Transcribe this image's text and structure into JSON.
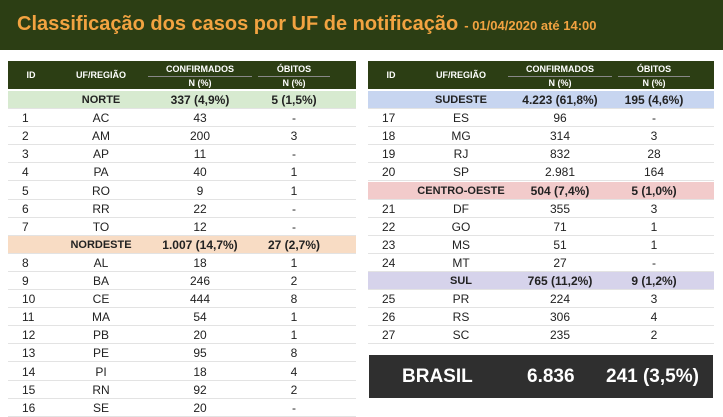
{
  "header": {
    "title": "Classificação dos casos por UF de notificação",
    "date": "- 01/04/2020 até 14:00"
  },
  "columns": {
    "id": "ID",
    "region": "UF/REGIÃO",
    "confirmed": "CONFIRMADOS",
    "confirmed_sub": "N (%)",
    "deaths": "ÓBITOS",
    "deaths_sub": "N (%)"
  },
  "left": [
    {
      "type": "group",
      "region": "NORTE",
      "confirmed": "337 (4,9%)",
      "deaths": "5 (1,5%)",
      "color": "#d7ead0"
    },
    {
      "type": "row",
      "id": "1",
      "uf": "AC",
      "confirmed": "43",
      "deaths": "-"
    },
    {
      "type": "row",
      "id": "2",
      "uf": "AM",
      "confirmed": "200",
      "deaths": "3"
    },
    {
      "type": "row",
      "id": "3",
      "uf": "AP",
      "confirmed": "11",
      "deaths": "-"
    },
    {
      "type": "row",
      "id": "4",
      "uf": "PA",
      "confirmed": "40",
      "deaths": "1"
    },
    {
      "type": "row",
      "id": "5",
      "uf": "RO",
      "confirmed": "9",
      "deaths": "1"
    },
    {
      "type": "row",
      "id": "6",
      "uf": "RR",
      "confirmed": "22",
      "deaths": "-"
    },
    {
      "type": "row",
      "id": "7",
      "uf": "TO",
      "confirmed": "12",
      "deaths": "-"
    },
    {
      "type": "group",
      "region": "NORDESTE",
      "confirmed": "1.007 (14,7%)",
      "deaths": "27 (2,7%)",
      "color": "#f8dcc4"
    },
    {
      "type": "row",
      "id": "8",
      "uf": "AL",
      "confirmed": "18",
      "deaths": "1"
    },
    {
      "type": "row",
      "id": "9",
      "uf": "BA",
      "confirmed": "246",
      "deaths": "2"
    },
    {
      "type": "row",
      "id": "10",
      "uf": "CE",
      "confirmed": "444",
      "deaths": "8"
    },
    {
      "type": "row",
      "id": "11",
      "uf": "MA",
      "confirmed": "54",
      "deaths": "1"
    },
    {
      "type": "row",
      "id": "12",
      "uf": "PB",
      "confirmed": "20",
      "deaths": "1"
    },
    {
      "type": "row",
      "id": "13",
      "uf": "PE",
      "confirmed": "95",
      "deaths": "8"
    },
    {
      "type": "row",
      "id": "14",
      "uf": "PI",
      "confirmed": "18",
      "deaths": "4"
    },
    {
      "type": "row",
      "id": "15",
      "uf": "RN",
      "confirmed": "92",
      "deaths": "2"
    },
    {
      "type": "row",
      "id": "16",
      "uf": "SE",
      "confirmed": "20",
      "deaths": "-"
    }
  ],
  "right": [
    {
      "type": "group",
      "region": "SUDESTE",
      "confirmed": "4.223 (61,8%)",
      "deaths": "195 (4,6%)",
      "color": "#c7d5f0"
    },
    {
      "type": "row",
      "id": "17",
      "uf": "ES",
      "confirmed": "96",
      "deaths": "-"
    },
    {
      "type": "row",
      "id": "18",
      "uf": "MG",
      "confirmed": "314",
      "deaths": "3"
    },
    {
      "type": "row",
      "id": "19",
      "uf": "RJ",
      "confirmed": "832",
      "deaths": "28"
    },
    {
      "type": "row",
      "id": "20",
      "uf": "SP",
      "confirmed": "2.981",
      "deaths": "164"
    },
    {
      "type": "group",
      "region": "CENTRO-OESTE",
      "confirmed": "504 (7,4%)",
      "deaths": "5 (1,0%)",
      "color": "#f2cbcb"
    },
    {
      "type": "row",
      "id": "21",
      "uf": "DF",
      "confirmed": "355",
      "deaths": "3"
    },
    {
      "type": "row",
      "id": "22",
      "uf": "GO",
      "confirmed": "71",
      "deaths": "1"
    },
    {
      "type": "row",
      "id": "23",
      "uf": "MS",
      "confirmed": "51",
      "deaths": "1"
    },
    {
      "type": "row",
      "id": "24",
      "uf": "MT",
      "confirmed": "27",
      "deaths": "-"
    },
    {
      "type": "group",
      "region": "SUL",
      "confirmed": "765 (11,2%)",
      "deaths": "9 (1,2%)",
      "color": "#d6d3eb"
    },
    {
      "type": "row",
      "id": "25",
      "uf": "PR",
      "confirmed": "224",
      "deaths": "3"
    },
    {
      "type": "row",
      "id": "26",
      "uf": "RS",
      "confirmed": "306",
      "deaths": "4"
    },
    {
      "type": "row",
      "id": "27",
      "uf": "SC",
      "confirmed": "235",
      "deaths": "2"
    }
  ],
  "total": {
    "label": "BRASIL",
    "confirmed": "6.836",
    "deaths": "241 (3,5%)"
  }
}
